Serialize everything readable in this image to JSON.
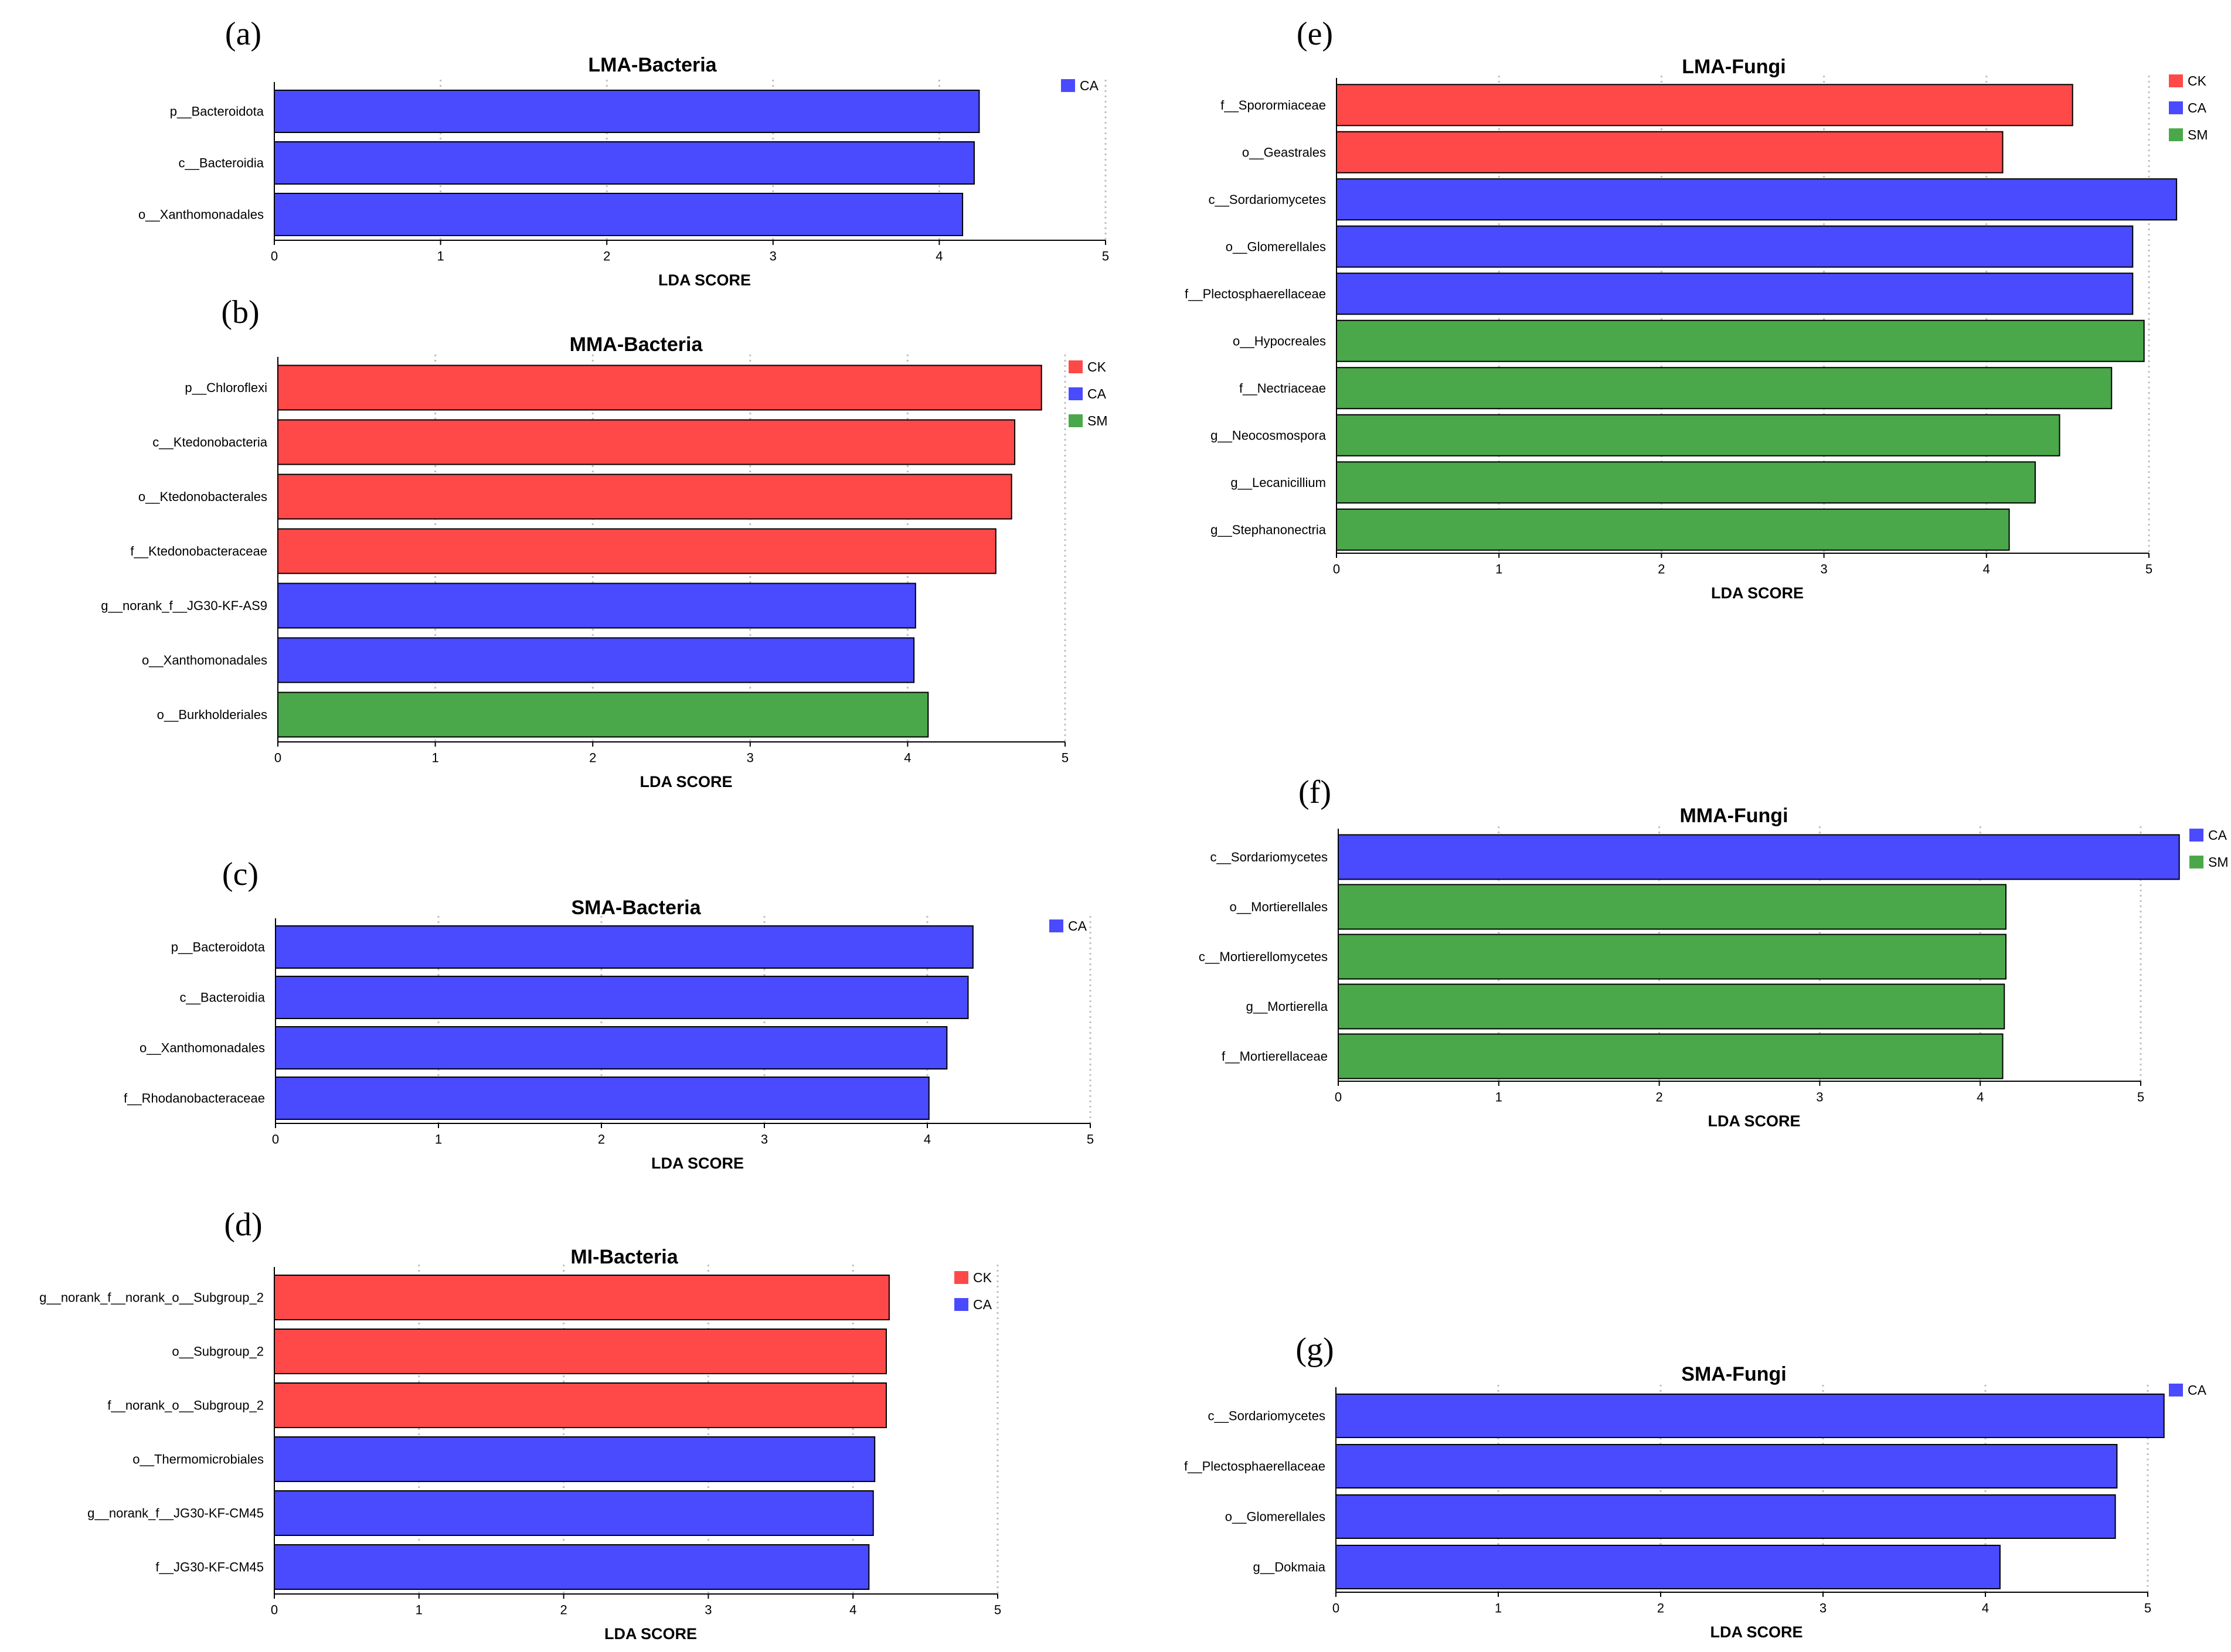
{
  "colors": {
    "CK": "#ff4949",
    "CA": "#4a4aff",
    "SM": "#4aa84a"
  },
  "xlabel": "LDA SCORE",
  "chart_data": [
    {
      "panel": "(a)",
      "type": "bar",
      "orientation": "horizontal",
      "title": "LMA-Bacteria",
      "xlabel": "LDA SCORE",
      "xlim": [
        0,
        5
      ],
      "xticks": [
        0,
        1,
        2,
        3,
        4,
        5
      ],
      "legend": [
        "CA"
      ],
      "categories": [
        "p__Bacteroidota",
        "c__Bacteroidia",
        "o__Xanthomonadales"
      ],
      "values": [
        4.24,
        4.21,
        4.14
      ],
      "groups": [
        "CA",
        "CA",
        "CA"
      ]
    },
    {
      "panel": "(b)",
      "type": "bar",
      "orientation": "horizontal",
      "title": "MMA-Bacteria",
      "xlabel": "LDA SCORE",
      "xlim": [
        0,
        5
      ],
      "xticks": [
        0,
        1,
        2,
        3,
        4,
        5
      ],
      "legend": [
        "CK",
        "CA",
        "SM"
      ],
      "categories": [
        "p__Chloroflexi",
        "c__Ktedonobacteria",
        "o__Ktedonobacterales",
        "f__Ktedonobacteraceae",
        "g__norank_f__JG30-KF-AS9",
        "o__Xanthomonadales",
        "o__Burkholderiales"
      ],
      "values": [
        4.85,
        4.68,
        4.66,
        4.56,
        4.05,
        4.04,
        4.13
      ],
      "groups": [
        "CK",
        "CK",
        "CK",
        "CK",
        "CA",
        "CA",
        "SM"
      ]
    },
    {
      "panel": "(c)",
      "type": "bar",
      "orientation": "horizontal",
      "title": "SMA-Bacteria",
      "xlabel": "LDA SCORE",
      "xlim": [
        0,
        5
      ],
      "xticks": [
        0,
        1,
        2,
        3,
        4,
        5
      ],
      "legend": [
        "CA"
      ],
      "categories": [
        "p__Bacteroidota",
        "c__Bacteroidia",
        "o__Xanthomonadales",
        "f__Rhodanobacteraceae"
      ],
      "values": [
        4.28,
        4.25,
        4.12,
        4.01
      ],
      "groups": [
        "CA",
        "CA",
        "CA",
        "CA"
      ]
    },
    {
      "panel": "(d)",
      "type": "bar",
      "orientation": "horizontal",
      "title": "MI-Bacteria",
      "xlabel": "LDA SCORE",
      "xlim": [
        0,
        5
      ],
      "xticks": [
        0,
        1,
        2,
        3,
        4,
        5
      ],
      "legend": [
        "CK",
        "CA"
      ],
      "categories": [
        "g__norank_f__norank_o__Subgroup_2",
        "o__Subgroup_2",
        "f__norank_o__Subgroup_2",
        "o__Thermomicrobiales",
        "g__norank_f__JG30-KF-CM45",
        "f__JG30-KF-CM45"
      ],
      "values": [
        4.25,
        4.23,
        4.23,
        4.15,
        4.14,
        4.11
      ],
      "groups": [
        "CK",
        "CK",
        "CK",
        "CA",
        "CA",
        "CA"
      ]
    },
    {
      "panel": "(e)",
      "type": "bar",
      "orientation": "horizontal",
      "title": "LMA-Fungi",
      "xlabel": "LDA SCORE",
      "xlim": [
        0,
        5
      ],
      "xticks": [
        0,
        1,
        2,
        3,
        4,
        5
      ],
      "legend": [
        "CK",
        "CA",
        "SM"
      ],
      "categories": [
        "f__Sporormiaceae",
        "o__Geastrales",
        "c__Sordariomycetes",
        "o__Glomerellales",
        "f__Plectosphaerellaceae",
        "o__Hypocreales",
        "f__Nectriaceae",
        "g__Neocosmospora",
        "g__Lecanicillium",
        "g__Stephanonectria"
      ],
      "values": [
        4.53,
        4.1,
        5.17,
        4.9,
        4.9,
        4.97,
        4.77,
        4.45,
        4.3,
        4.14
      ],
      "groups": [
        "CK",
        "CK",
        "CA",
        "CA",
        "CA",
        "SM",
        "SM",
        "SM",
        "SM",
        "SM"
      ]
    },
    {
      "panel": "(f)",
      "type": "bar",
      "orientation": "horizontal",
      "title": "MMA-Fungi",
      "xlabel": "LDA SCORE",
      "xlim": [
        0,
        5
      ],
      "xticks": [
        0,
        1,
        2,
        3,
        4,
        5
      ],
      "legend": [
        "CA",
        "SM"
      ],
      "categories": [
        "c__Sordariomycetes",
        "o__Mortierellales",
        "c__Mortierellomycetes",
        "g__Mortierella",
        "f__Mortierellaceae"
      ],
      "values": [
        5.24,
        4.16,
        4.16,
        4.15,
        4.14
      ],
      "groups": [
        "CA",
        "SM",
        "SM",
        "SM",
        "SM"
      ]
    },
    {
      "panel": "(g)",
      "type": "bar",
      "orientation": "horizontal",
      "title": "SMA-Fungi",
      "xlabel": "LDA SCORE",
      "xlim": [
        0,
        5
      ],
      "xticks": [
        0,
        1,
        2,
        3,
        4,
        5
      ],
      "legend": [
        "CA"
      ],
      "categories": [
        "c__Sordariomycetes",
        "f__Plectosphaerellaceae",
        "o__Glomerellales",
        "g__Dokmaia"
      ],
      "values": [
        5.1,
        4.81,
        4.8,
        4.09
      ],
      "groups": [
        "CA",
        "CA",
        "CA",
        "CA"
      ]
    }
  ]
}
